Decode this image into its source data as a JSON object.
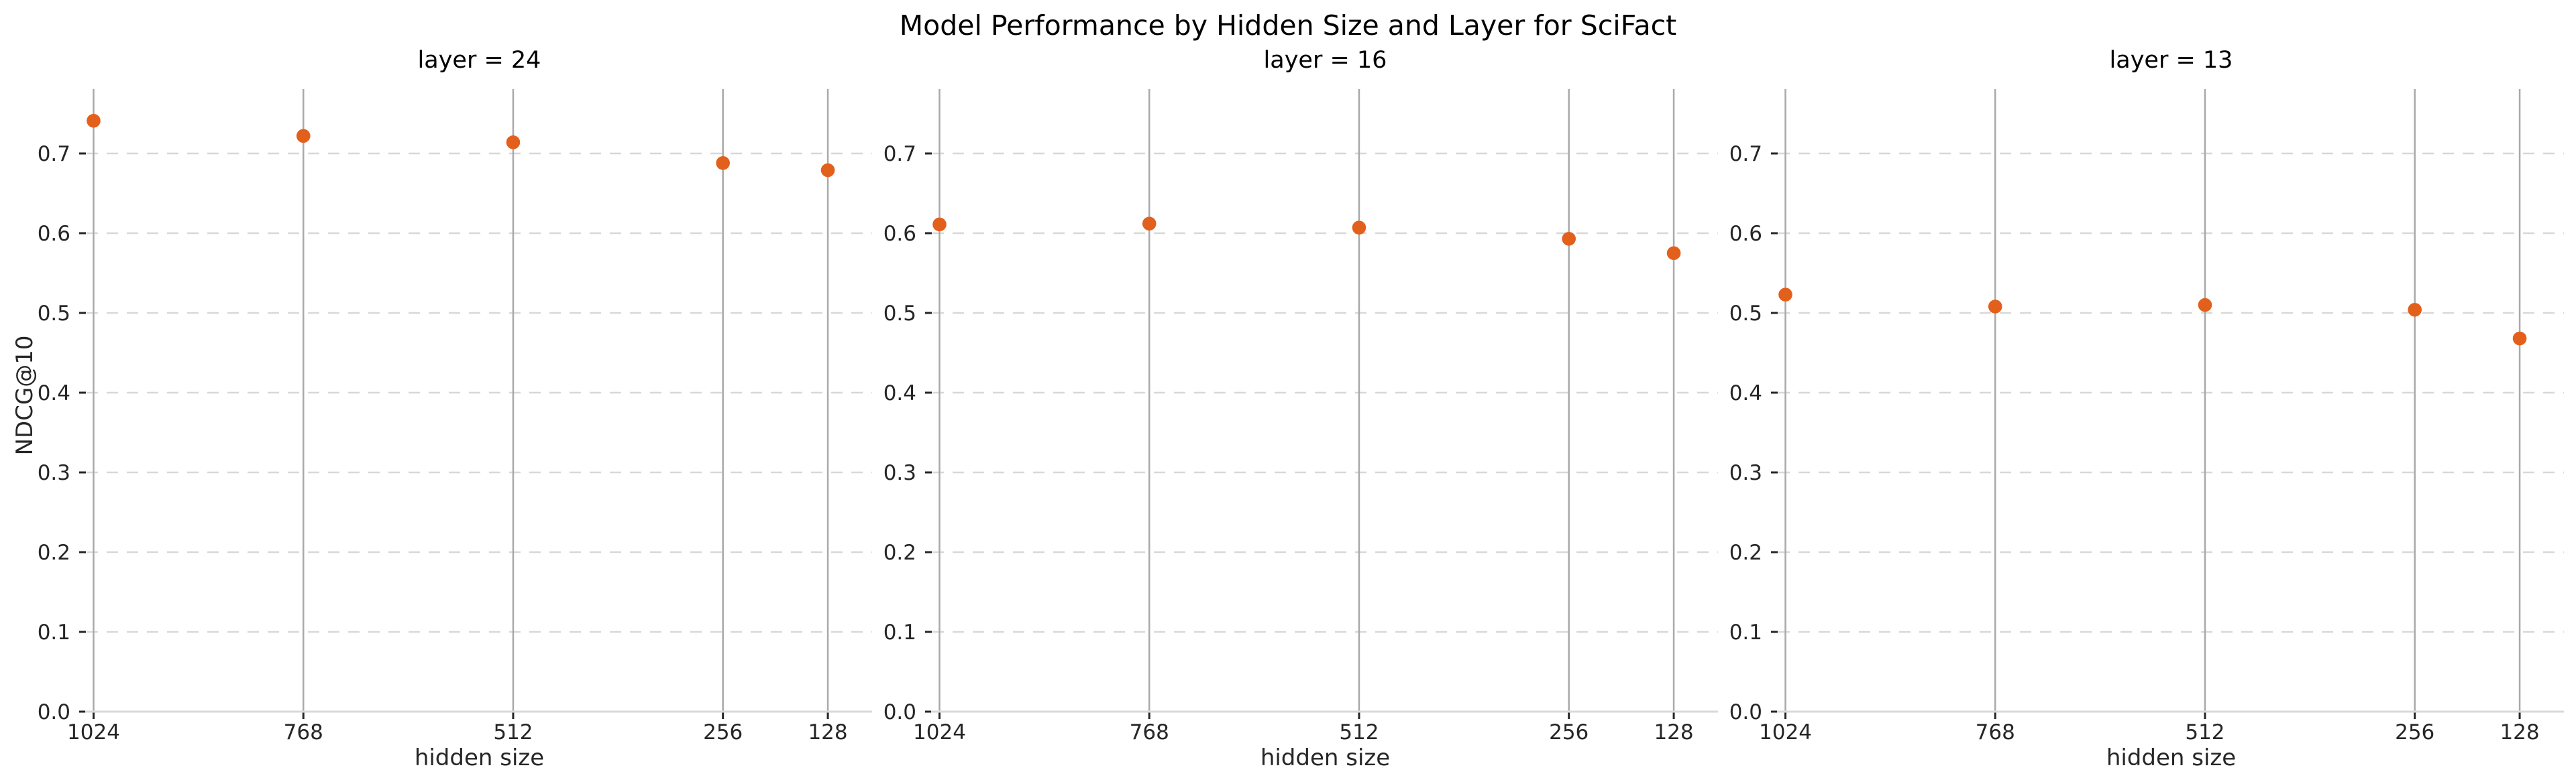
{
  "figure": {
    "title": "Model Performance by Hidden Size and Layer for SciFact"
  },
  "chart_data": {
    "type": "scatter",
    "title": "Model Performance by Hidden Size and Layer for SciFact",
    "xlabel": "hidden size",
    "ylabel": "NDCG@10",
    "facet_variable": "layer",
    "x_axis": {
      "scale": "linear",
      "reversed": true,
      "ticks": [
        1024,
        768,
        512,
        256,
        128
      ],
      "tick_labels": [
        "1024",
        "768",
        "512",
        "256",
        "128"
      ]
    },
    "y_axis": {
      "ticks": [
        0.0,
        0.1,
        0.2,
        0.3,
        0.4,
        0.5,
        0.6,
        0.7
      ],
      "tick_labels": [
        "0.0",
        "0.1",
        "0.2",
        "0.3",
        "0.4",
        "0.5",
        "0.6",
        "0.7"
      ],
      "ylim": [
        0.0,
        0.781
      ]
    },
    "grid": {
      "horizontal": "dashed",
      "vertical": "solid"
    },
    "legend": "none",
    "facets": [
      {
        "title": "layer = 24",
        "layer": 24,
        "x": [
          1024,
          768,
          512,
          256,
          128
        ],
        "y": [
          0.741,
          0.722,
          0.714,
          0.688,
          0.679
        ]
      },
      {
        "title": "layer = 16",
        "layer": 16,
        "x": [
          1024,
          768,
          512,
          256,
          128
        ],
        "y": [
          0.611,
          0.612,
          0.607,
          0.593,
          0.575
        ]
      },
      {
        "title": "layer = 13",
        "layer": 13,
        "x": [
          1024,
          768,
          512,
          256,
          128
        ],
        "y": [
          0.523,
          0.508,
          0.51,
          0.504,
          0.468
        ]
      }
    ],
    "style": {
      "point_color": "#e2601c",
      "vertical_grid_color": "#a9a9a9",
      "horizontal_grid_color": "#d8d8d8",
      "axis_line_color": "#d9d9d9",
      "tick_color": "#262626",
      "text_color": "#262626",
      "title_color": "#000000"
    }
  }
}
